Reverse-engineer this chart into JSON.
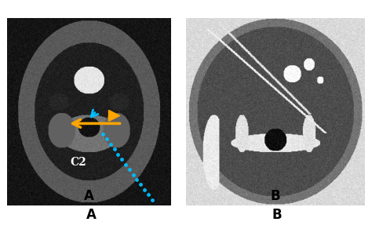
{
  "figure_title": "",
  "label_A": "A",
  "label_B": "B",
  "label_C2": "C2",
  "bg_color": "#ffffff",
  "panel_A_bg": "#000000",
  "panel_B_bg": "#1a1a1a",
  "arrow_orange_color": "#FFA500",
  "arrowhead_orange_color": "#FFA500",
  "arrow_blue_color": "#00BFFF",
  "dotted_line_color": "#00BFFF",
  "label_fontsize": 12,
  "c2_fontsize": 10
}
